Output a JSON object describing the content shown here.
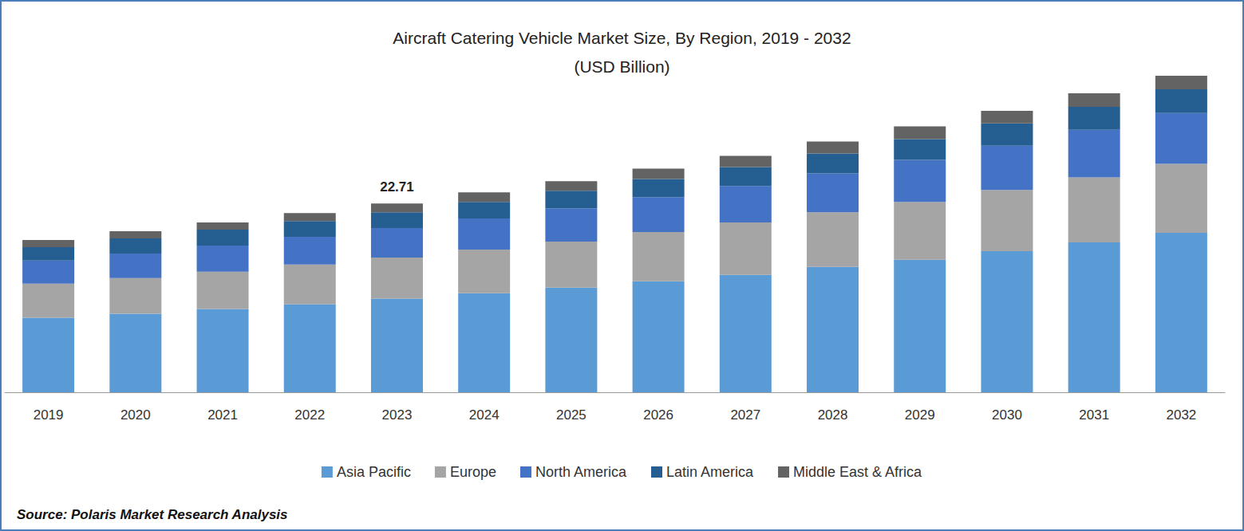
{
  "chart_data": {
    "type": "bar",
    "title": "Aircraft Catering Vehicle Market Size, By Region, 2019 - 2032",
    "subtitle": "(USD Billion)",
    "source": "Source: Polaris Market Research Analysis",
    "categories": [
      "2019",
      "2020",
      "2021",
      "2022",
      "2023",
      "2024",
      "2025",
      "2026",
      "2027",
      "2028",
      "2029",
      "2030",
      "2031",
      "2032"
    ],
    "series": [
      {
        "name": "Asia Pacific",
        "color": "#5b9bd5",
        "values": [
          8.97,
          9.45,
          10.02,
          10.59,
          11.26,
          11.93,
          12.6,
          13.36,
          14.12,
          15.08,
          15.94,
          16.98,
          18.03,
          19.18
        ]
      },
      {
        "name": "Europe",
        "color": "#a5a5a5",
        "values": [
          4.1,
          4.29,
          4.49,
          4.77,
          4.96,
          5.25,
          5.53,
          5.92,
          6.3,
          6.58,
          6.97,
          7.35,
          7.82,
          8.3
        ]
      },
      {
        "name": "North America",
        "color": "#4472c4",
        "values": [
          2.77,
          2.96,
          3.15,
          3.34,
          3.53,
          3.72,
          4.01,
          4.2,
          4.39,
          4.68,
          5.06,
          5.34,
          5.73,
          6.11
        ]
      },
      {
        "name": "Latin America",
        "color": "#255e91",
        "values": [
          1.62,
          1.81,
          1.91,
          1.91,
          1.91,
          2.0,
          2.1,
          2.19,
          2.29,
          2.39,
          2.48,
          2.67,
          2.77,
          2.86
        ]
      },
      {
        "name": "Middle East & Africa",
        "color": "#636363",
        "values": [
          0.86,
          0.86,
          0.86,
          0.95,
          1.05,
          1.15,
          1.15,
          1.24,
          1.34,
          1.43,
          1.53,
          1.53,
          1.62,
          1.62
        ]
      }
    ],
    "annotations": [
      {
        "category": "2023",
        "text": "22.71"
      }
    ],
    "stacked": true,
    "ylim": [
      0,
      40
    ],
    "yticks": [
      0,
      10,
      20,
      30,
      40
    ],
    "grid": false,
    "tick_labels": "x",
    "legend": "bottom"
  }
}
